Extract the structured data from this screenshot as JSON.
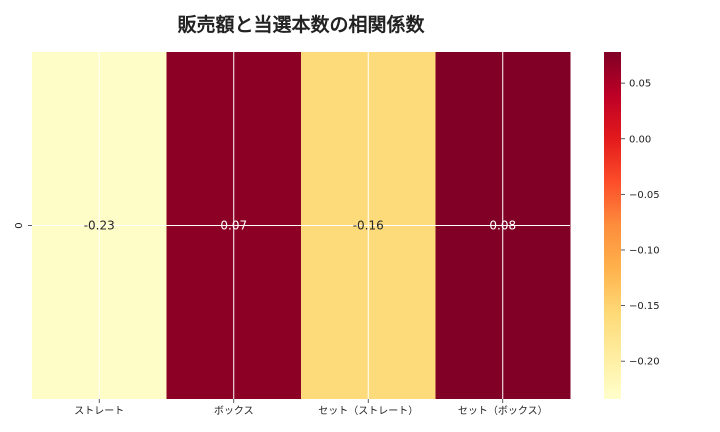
{
  "chart_data": {
    "type": "heatmap",
    "title": "販売額と当選本数の相関係数",
    "x_categories": [
      "ストレート",
      "ボックス",
      "セット（ストレート）",
      "セット（ボックス）"
    ],
    "y_categories": [
      "0"
    ],
    "values": [
      [
        -0.23,
        0.07,
        -0.16,
        0.08
      ]
    ],
    "value_labels": [
      "-0.23",
      "0.07",
      "-0.16",
      "0.08"
    ],
    "colorbar": {
      "min": -0.234,
      "max": 0.078,
      "ticks": [
        0.05,
        0.0,
        -0.05,
        -0.1,
        -0.15,
        -0.2
      ],
      "tick_labels": [
        "0.05",
        "0.00",
        "−0.05",
        "−0.10",
        "−0.15",
        "−0.20"
      ],
      "colormap": "YlOrRd"
    },
    "grid": true,
    "colors": [
      "#ffffcc",
      "#ffeda0",
      "#fed976",
      "#feb24c",
      "#fd8d3c",
      "#fc4e2a",
      "#e31a1c",
      "#bd0026",
      "#800026"
    ]
  }
}
